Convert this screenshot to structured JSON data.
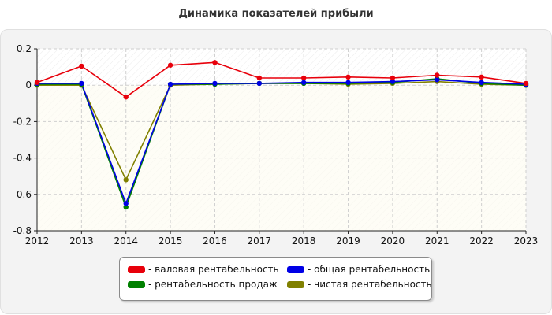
{
  "chart_data": {
    "type": "line",
    "title": "Динамика показателей прибыли",
    "xlabel": "",
    "ylabel": "",
    "x": [
      "2012",
      "2013",
      "2014",
      "2015",
      "2016",
      "2017",
      "2018",
      "2019",
      "2020",
      "2021",
      "2022",
      "2023"
    ],
    "ylim": [
      -0.8,
      0.2
    ],
    "yticks": [
      "0.2",
      "0",
      "-0.2",
      "-0.4",
      "-0.6",
      "-0.8"
    ],
    "grid": true,
    "legend_position": "bottom-center",
    "series": [
      {
        "name": "- валовая рентабельность",
        "color": "#e8000b",
        "values": [
          0.015,
          0.105,
          -0.065,
          0.11,
          0.125,
          0.04,
          0.04,
          0.045,
          0.04,
          0.055,
          0.045,
          0.01
        ]
      },
      {
        "name": "- общая рентабельность",
        "color": "#0000e6",
        "values": [
          0.01,
          0.01,
          -0.65,
          0.005,
          0.01,
          0.01,
          0.015,
          0.015,
          0.02,
          0.03,
          0.015,
          0.005
        ]
      },
      {
        "name": "- рентабельность продаж",
        "color": "#008000",
        "values": [
          0.005,
          0.005,
          -0.67,
          0.005,
          0.005,
          0.01,
          0.01,
          0.01,
          0.015,
          0.035,
          0.01,
          0.0
        ]
      },
      {
        "name": "- чистая рентабельность",
        "color": "#808000",
        "values": [
          0.0,
          0.0,
          -0.52,
          0.0,
          0.005,
          0.01,
          0.01,
          0.005,
          0.01,
          0.02,
          0.005,
          0.0
        ]
      }
    ]
  }
}
